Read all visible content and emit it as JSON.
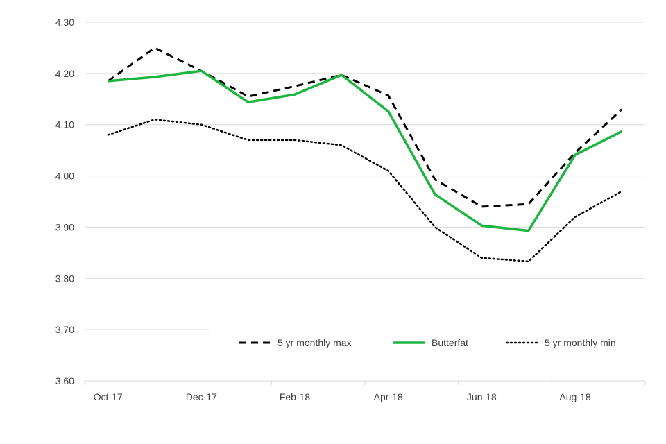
{
  "chart_data": {
    "type": "line",
    "title": "",
    "xlabel": "",
    "ylabel": "",
    "categories": [
      "Oct-17",
      "Nov-17",
      "Dec-17",
      "Jan-18",
      "Feb-18",
      "Mar-18",
      "Apr-18",
      "May-18",
      "Jun-18",
      "Jul-18",
      "Aug-18",
      "Sep-18"
    ],
    "x_tick_labels": [
      "Oct-17",
      "Dec-17",
      "Feb-18",
      "Apr-18",
      "Jun-18",
      "Aug-18"
    ],
    "y_tick_labels": [
      "4.30",
      "4.20",
      "4.10",
      "4.00",
      "3.90",
      "3.80",
      "3.70",
      "3.60"
    ],
    "ylim": [
      3.6,
      4.3
    ],
    "grid": "horizontal",
    "legend_position": "bottom-right",
    "series": [
      {
        "name": "5 yr monthly max",
        "style": "dashed",
        "color": "#000000",
        "values": [
          4.185,
          4.25,
          4.205,
          4.155,
          4.175,
          4.197,
          4.157,
          3.993,
          3.94,
          3.945,
          4.045,
          4.13
        ]
      },
      {
        "name": "Butterfat",
        "style": "solid",
        "color": "#1cb540",
        "values": [
          4.185,
          4.193,
          4.205,
          4.144,
          4.159,
          4.197,
          4.126,
          3.964,
          3.903,
          3.893,
          4.041,
          4.087
        ]
      },
      {
        "name": "5 yr monthly min",
        "style": "dotted",
        "color": "#000000",
        "values": [
          4.08,
          4.11,
          4.1,
          4.07,
          4.07,
          4.06,
          4.01,
          3.9,
          3.84,
          3.833,
          3.92,
          3.97
        ]
      }
    ]
  }
}
